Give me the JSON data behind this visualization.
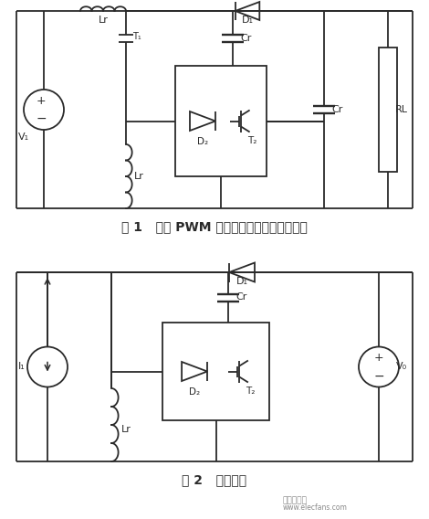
{
  "fig_width": 4.7,
  "fig_height": 5.68,
  "dpi": 100,
  "bg_color": "#ffffff",
  "line_color": "#2a2a2a",
  "line_width": 1.3,
  "fig1_title": "图 1   恒频 PWM 型零电流开关准谐振变流器",
  "fig2_title": "图 2   等效电路",
  "title_fontsize": 10,
  "label_fontsize": 8,
  "watermark_line1": "电子发烧友",
  "watermark_line2": "www.elecfans.com"
}
